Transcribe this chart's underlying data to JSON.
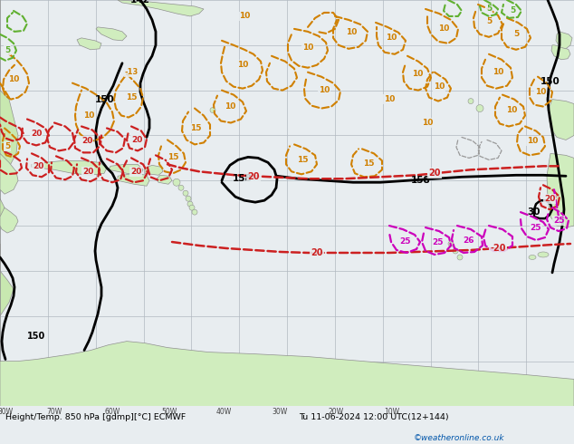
{
  "title_left": "Height/Temp. 850 hPa [gdmp][°C] ECMWF",
  "title_right": "Tu 11-06-2024 12:00 UTC(12+144)",
  "credit": "©weatheronline.co.uk",
  "ocean_color": "#e8edf0",
  "land_color": "#d0edbe",
  "land_edge_color": "#909090",
  "grid_color": "#b0b8c0",
  "bottom_bar_color": "#dde8f0",
  "bottom_text_color": "#000000",
  "credit_color": "#0055aa",
  "blk": "#000000",
  "org": "#d08000",
  "red": "#cc2020",
  "mag": "#cc00bb",
  "grn": "#60b030",
  "gray": "#999999",
  "figsize": [
    6.34,
    4.9
  ],
  "dpi": 100
}
